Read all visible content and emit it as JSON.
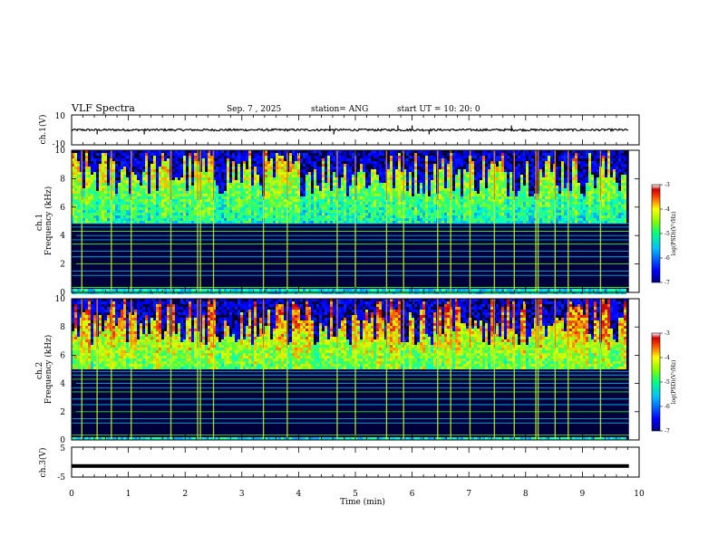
{
  "header": {
    "title": "VLF Spectra",
    "date": "Sep. 7 , 2025",
    "station": "station= ANG",
    "start": "start UT =   10: 20: 0"
  },
  "chart_data": [
    {
      "type": "line",
      "ylabel": "ch.1(V)",
      "ylim": [
        -10,
        10
      ],
      "yticks": [
        "10",
        "-10"
      ],
      "baseline": 0,
      "spikes": [
        {
          "t": 0.45,
          "v": -3
        },
        {
          "t": 1.28,
          "v": -3
        },
        {
          "t": 4.55,
          "v": 3
        },
        {
          "t": 4.62,
          "v": -3
        },
        {
          "t": 5.75,
          "v": 3
        },
        {
          "t": 6.0,
          "v": 3
        },
        {
          "t": 6.3,
          "v": -3
        },
        {
          "t": 7.75,
          "v": 3
        }
      ],
      "xlim": [
        0,
        10
      ]
    },
    {
      "type": "heatmap",
      "ylabel": "ch.1\nFrequency (kHz)",
      "ylim": [
        0,
        10
      ],
      "yticks": [
        "0",
        "2",
        "4",
        "6",
        "8",
        "10"
      ],
      "xlim": [
        0,
        10
      ],
      "data_end_min": 9.82,
      "colorbar": {
        "label": "log(PSD)(V²/Hz)",
        "range": [
          -7,
          -3
        ],
        "ticks": [
          "-3",
          "-4",
          "-5",
          "-6",
          "-7"
        ]
      },
      "bright_times_min": [
        0.18,
        0.7,
        1.05,
        1.75,
        2.22,
        2.27,
        2.5,
        3.38,
        3.8,
        4.68,
        5.0,
        5.55,
        5.85,
        6.45,
        6.68,
        7.02,
        7.45,
        7.8,
        8.18,
        8.22,
        8.52,
        8.75,
        9.32
      ]
    },
    {
      "type": "heatmap",
      "ylabel": "ch.2\nFrequency (kHz)",
      "ylim": [
        0,
        10
      ],
      "yticks": [
        "0",
        "2",
        "4",
        "6",
        "8",
        "10"
      ],
      "xlim": [
        0,
        10
      ],
      "data_end_min": 9.82,
      "colorbar": {
        "label": "log(PSD)(V²/Hz)",
        "range": [
          -7,
          -3
        ],
        "ticks": [
          "-3",
          "-4",
          "-5",
          "-6",
          "-7"
        ]
      },
      "bright_times_min": [
        0.18,
        0.45,
        0.7,
        1.05,
        1.75,
        2.22,
        2.27,
        2.5,
        3.38,
        3.8,
        4.68,
        5.0,
        5.55,
        5.85,
        6.45,
        6.68,
        7.02,
        7.45,
        7.8,
        8.18,
        8.22,
        8.52,
        8.75,
        9.32
      ]
    },
    {
      "type": "line",
      "ylabel": "ch.3(V)",
      "ylim": [
        -5,
        5
      ],
      "yticks": [
        "5",
        "-5"
      ],
      "baseline": -1.3,
      "xlim": [
        0,
        10
      ],
      "xlabel": "Time (min)",
      "xticks": [
        "0",
        "1",
        "2",
        "3",
        "4",
        "5",
        "6",
        "7",
        "8",
        "9",
        "10"
      ]
    }
  ]
}
